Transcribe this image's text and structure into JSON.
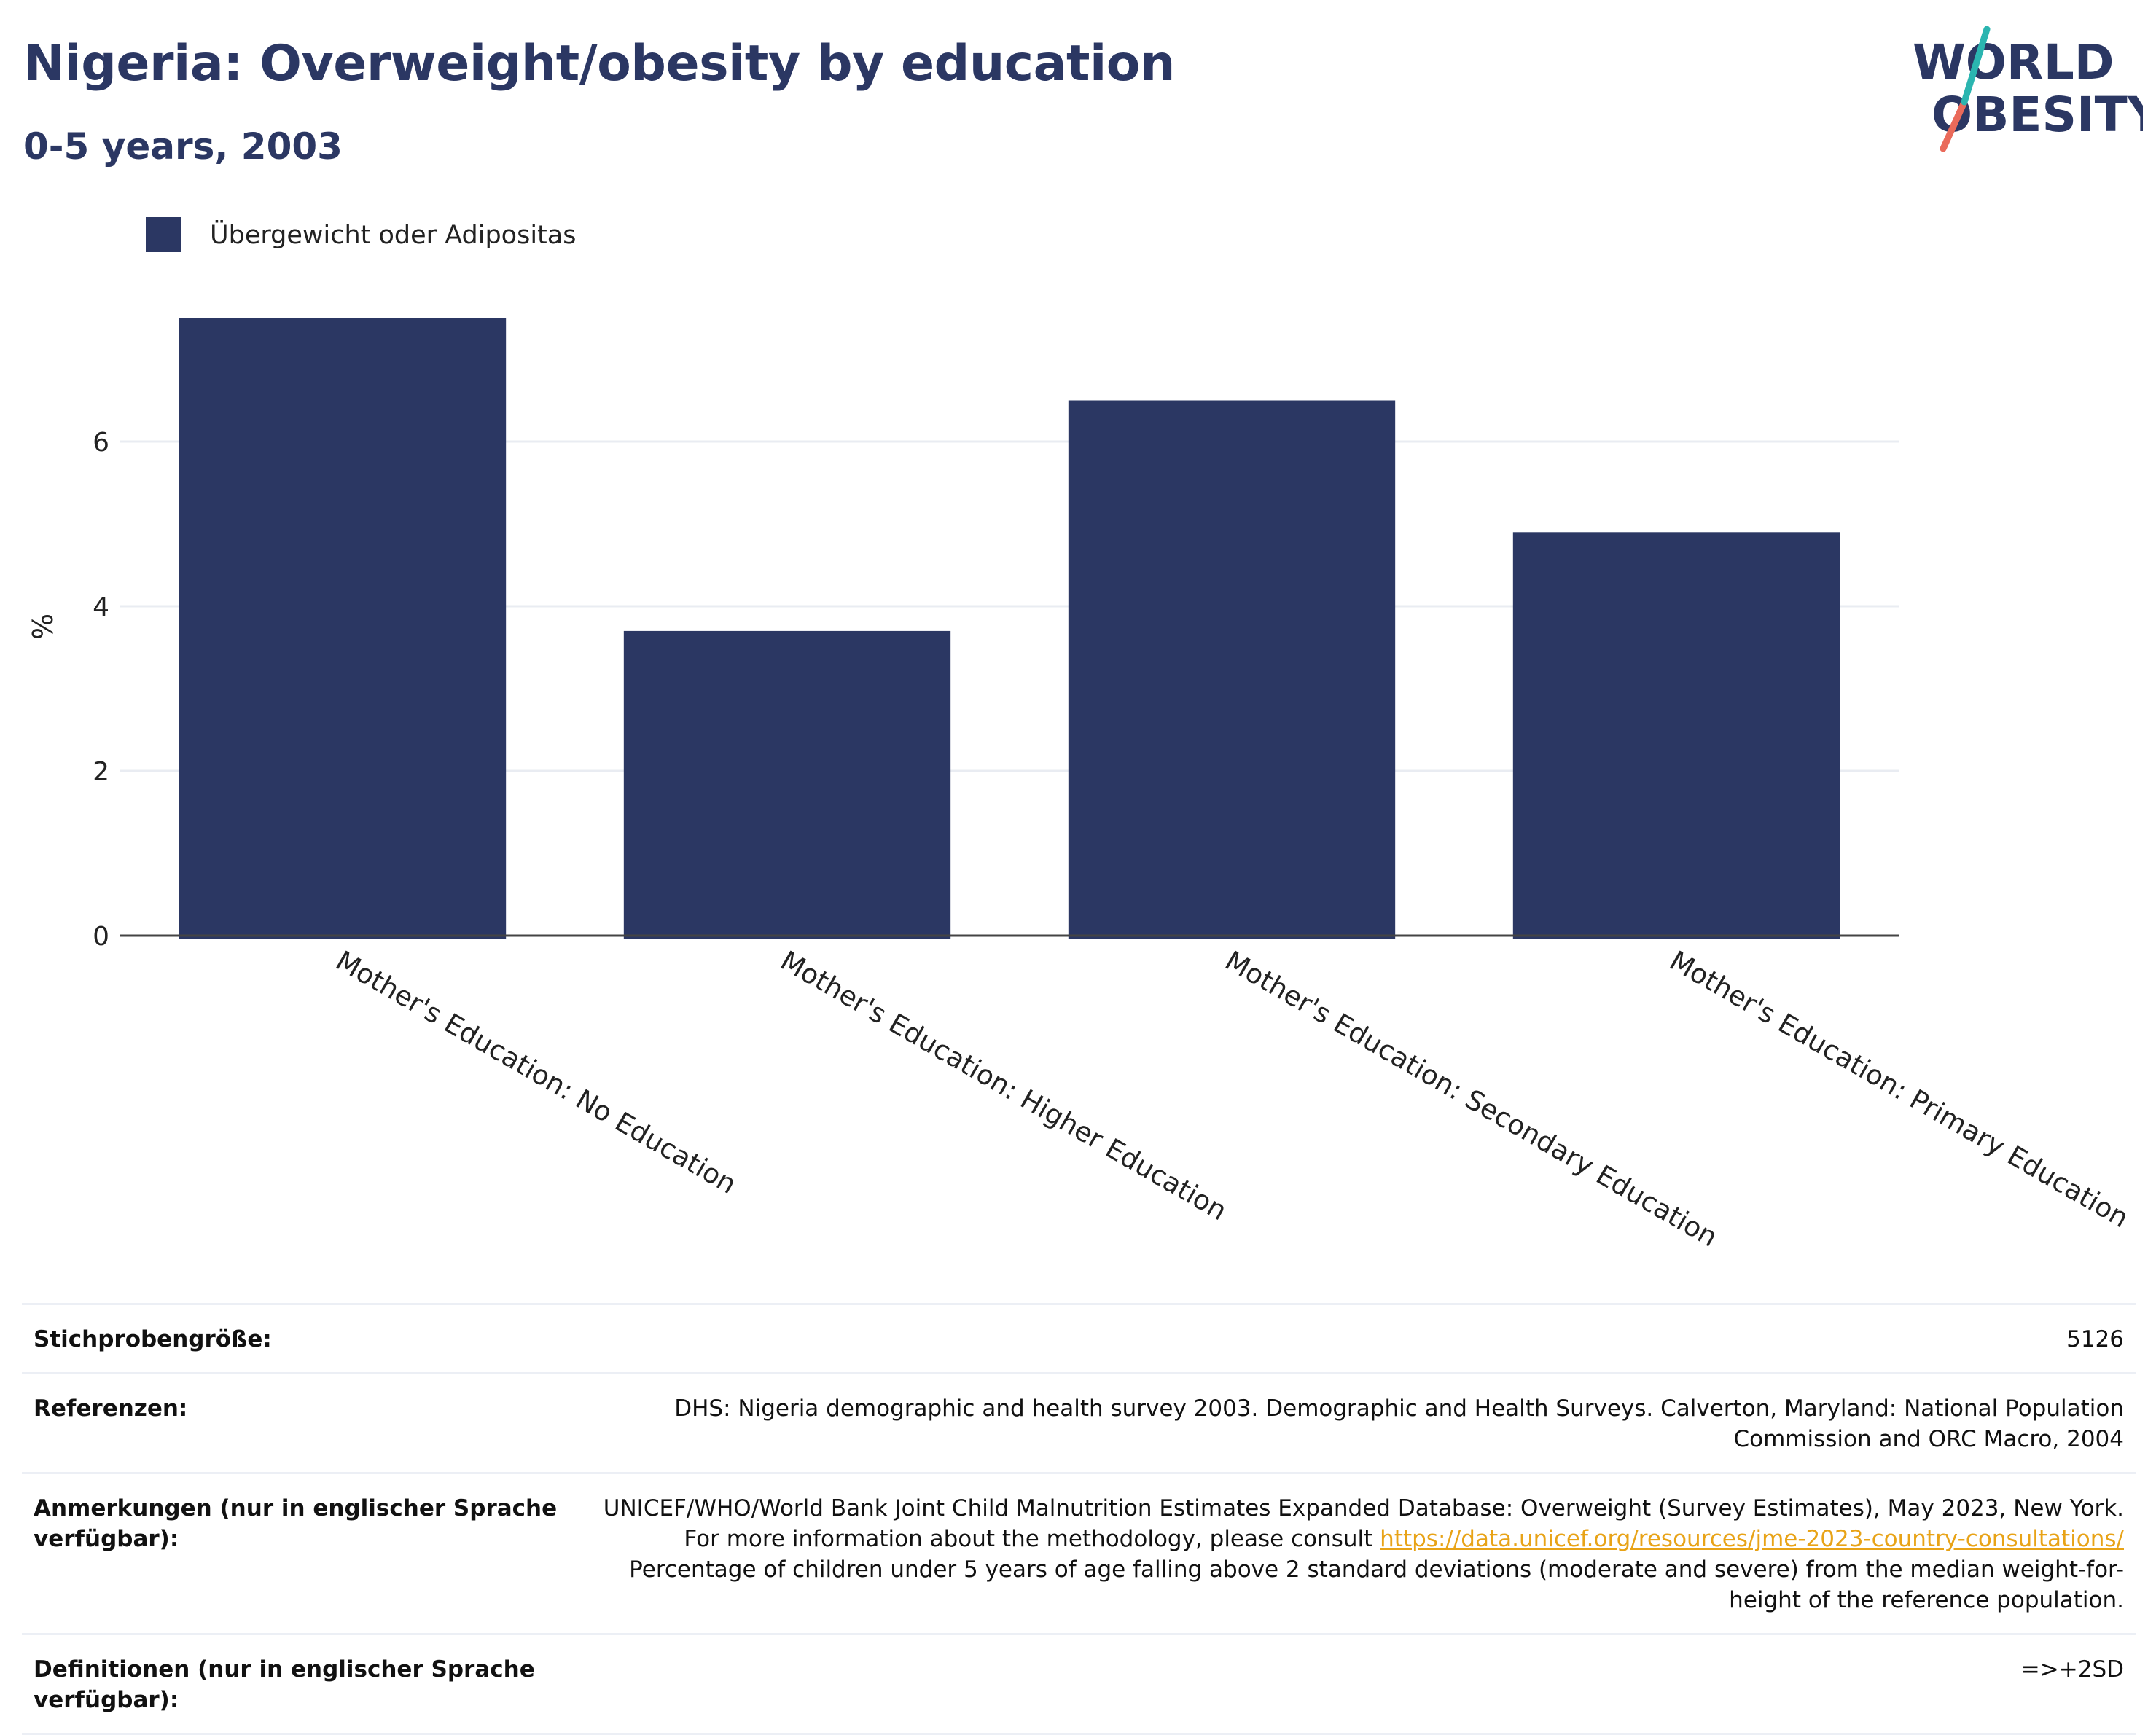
{
  "header": {
    "title": "Nigeria: Overweight/obesity by education",
    "subtitle": "0-5 years, 2003"
  },
  "logo": {
    "line1": "WORLD",
    "line2": "OBESITY",
    "colors": {
      "text": "#2b3763",
      "slash_top": "#2bb5b0",
      "slash_bottom": "#ea6a5a"
    }
  },
  "colors": {
    "bar": "#2b3763",
    "grid": "#e9ecf2",
    "axis": "#444444",
    "link": "#e8a317"
  },
  "chart_data": {
    "type": "bar",
    "categories": [
      "Mother's Education: No Education",
      "Mother's Education: Higher Education",
      "Mother's Education: Secondary Education",
      "Mother's Education: Primary Education"
    ],
    "series": [
      {
        "name": "Übergewicht oder Adipositas",
        "values": [
          7.5,
          3.7,
          6.5,
          4.9
        ]
      }
    ],
    "ylabel": "%",
    "ylim": [
      0,
      8
    ],
    "yticks": [
      0,
      2,
      4,
      6
    ],
    "grid": true,
    "legend": "top-left"
  },
  "info": [
    {
      "label": "Stichprobengröße:",
      "value": "5126"
    },
    {
      "label": "Referenzen:",
      "value": "DHS: Nigeria demographic and health survey 2003. Demographic and Health Surveys. Calverton, Maryland: National Population Commission and ORC Macro, 2004"
    },
    {
      "label": "Anmerkungen (nur in englischer Sprache verfügbar):",
      "value_before": "UNICEF/WHO/World Bank Joint Child Malnutrition Estimates Expanded Database: Overweight (Survey Estimates), May 2023, New York. For more information about the methodology, please consult ",
      "link": "https://data.unicef.org/resources/jme-2023-country-consultations/",
      "value_after": " Percentage of children under 5 years of age falling above 2 standard deviations (moderate and severe) from the median weight-for-height of the reference population."
    },
    {
      "label": "Definitionen (nur in englischer Sprache verfügbar):",
      "value": "=>+2SD"
    }
  ]
}
